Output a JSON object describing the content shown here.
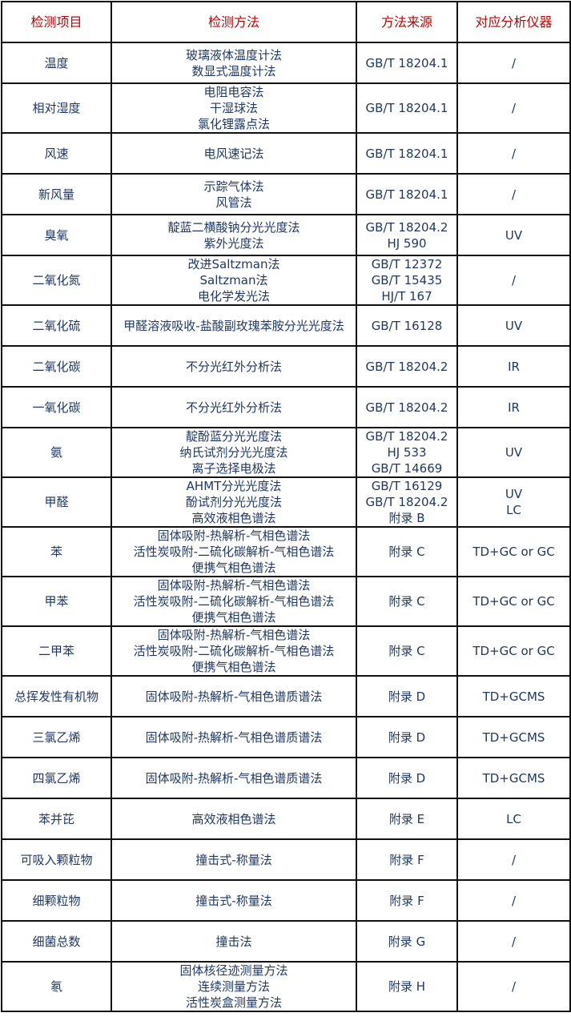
{
  "colors": {
    "header_text": "#c00000",
    "body_text": "#1f3864",
    "border": "#111111"
  },
  "table": {
    "headers": [
      "检测项目",
      "检测方法",
      "方法来源",
      "对应分析仪器"
    ],
    "rows": [
      [
        "温度",
        "玻璃液体温度计法\n数显式温度计法",
        "GB/T 18204.1",
        "/"
      ],
      [
        "相对湿度",
        "电阻电容法\n干湿球法\n氯化锂露点法",
        "GB/T 18204.1",
        "/"
      ],
      [
        "风速",
        "电风速记法",
        "GB/T 18204.1",
        "/"
      ],
      [
        "新风量",
        "示踪气体法\n风管法",
        "GB/T 18204.1",
        "/"
      ],
      [
        "臭氧",
        "靛蓝二横酸钠分光光度法\n紫外光度法",
        "GB/T 18204.2\nHJ 590",
        "UV"
      ],
      [
        "二氧化氮",
        "改进Saltzman法\nSaltzman法\n电化学发光法",
        "GB/T 12372\nGB/T 15435\nHJ/T 167",
        "/"
      ],
      [
        "二氧化硫",
        "甲醛溶液吸收-盐酸副玫瑰苯胺分光光度法",
        "GB/T 16128",
        "UV"
      ],
      [
        "二氧化碳",
        "不分光红外分析法",
        "GB/T 18204.2",
        "IR"
      ],
      [
        "一氧化碳",
        "不分光红外分析法",
        "GB/T 18204.2",
        "IR"
      ],
      [
        "氨",
        "靛酚蓝分光光度法\n纳氏试剂分光光度法\n离子选择电极法",
        "GB/T 18204.2\nHJ 533\nGB/T 14669",
        "UV"
      ],
      [
        "甲醛",
        "AHMT分光光度法\n酚试剂分光光度法\n高效液相色谱法",
        "GB/T 16129\nGB/T 18204.2\n附录 B",
        "UV\nLC"
      ],
      [
        "苯",
        "固体吸附-热解析-气相色谱法\n活性炭吸附-二硫化碳解析-气相色谱法\n便携气相色谱法",
        "附录 C",
        "TD+GC or GC"
      ],
      [
        "甲苯",
        "固体吸附-热解析-气相色谱法\n活性炭吸附-二硫化碳解析-气相色谱法\n便携气相色谱法",
        "附录 C",
        "TD+GC or GC"
      ],
      [
        "二甲苯",
        "固体吸附-热解析-气相色谱法\n活性炭吸附-二硫化碳解析-气相色谱法\n便携气相色谱法",
        "附录 C",
        "TD+GC or GC"
      ],
      [
        "总挥发性有机物",
        "固体吸附-热解析-气相色谱质谱法",
        "附录 D",
        "TD+GCMS"
      ],
      [
        "三氯乙烯",
        "固体吸附-热解析-气相色谱质谱法",
        "附录 D",
        "TD+GCMS"
      ],
      [
        "四氯乙烯",
        "固体吸附-热解析-气相色谱质谱法",
        "附录 D",
        "TD+GCMS"
      ],
      [
        "苯并芘",
        "高效液相色谱法",
        "附录 E",
        "LC"
      ],
      [
        "可吸入颗粒物",
        "撞击式-称量法",
        "附录 F",
        "/"
      ],
      [
        "细颗粒物",
        "撞击式-称量法",
        "附录 F",
        "/"
      ],
      [
        "细菌总数",
        "撞击法",
        "附录 G",
        "/"
      ],
      [
        "氡",
        "固体核径迹测量方法\n连续测量方法\n活性炭盒测量方法",
        "附录 H",
        "/"
      ]
    ]
  }
}
